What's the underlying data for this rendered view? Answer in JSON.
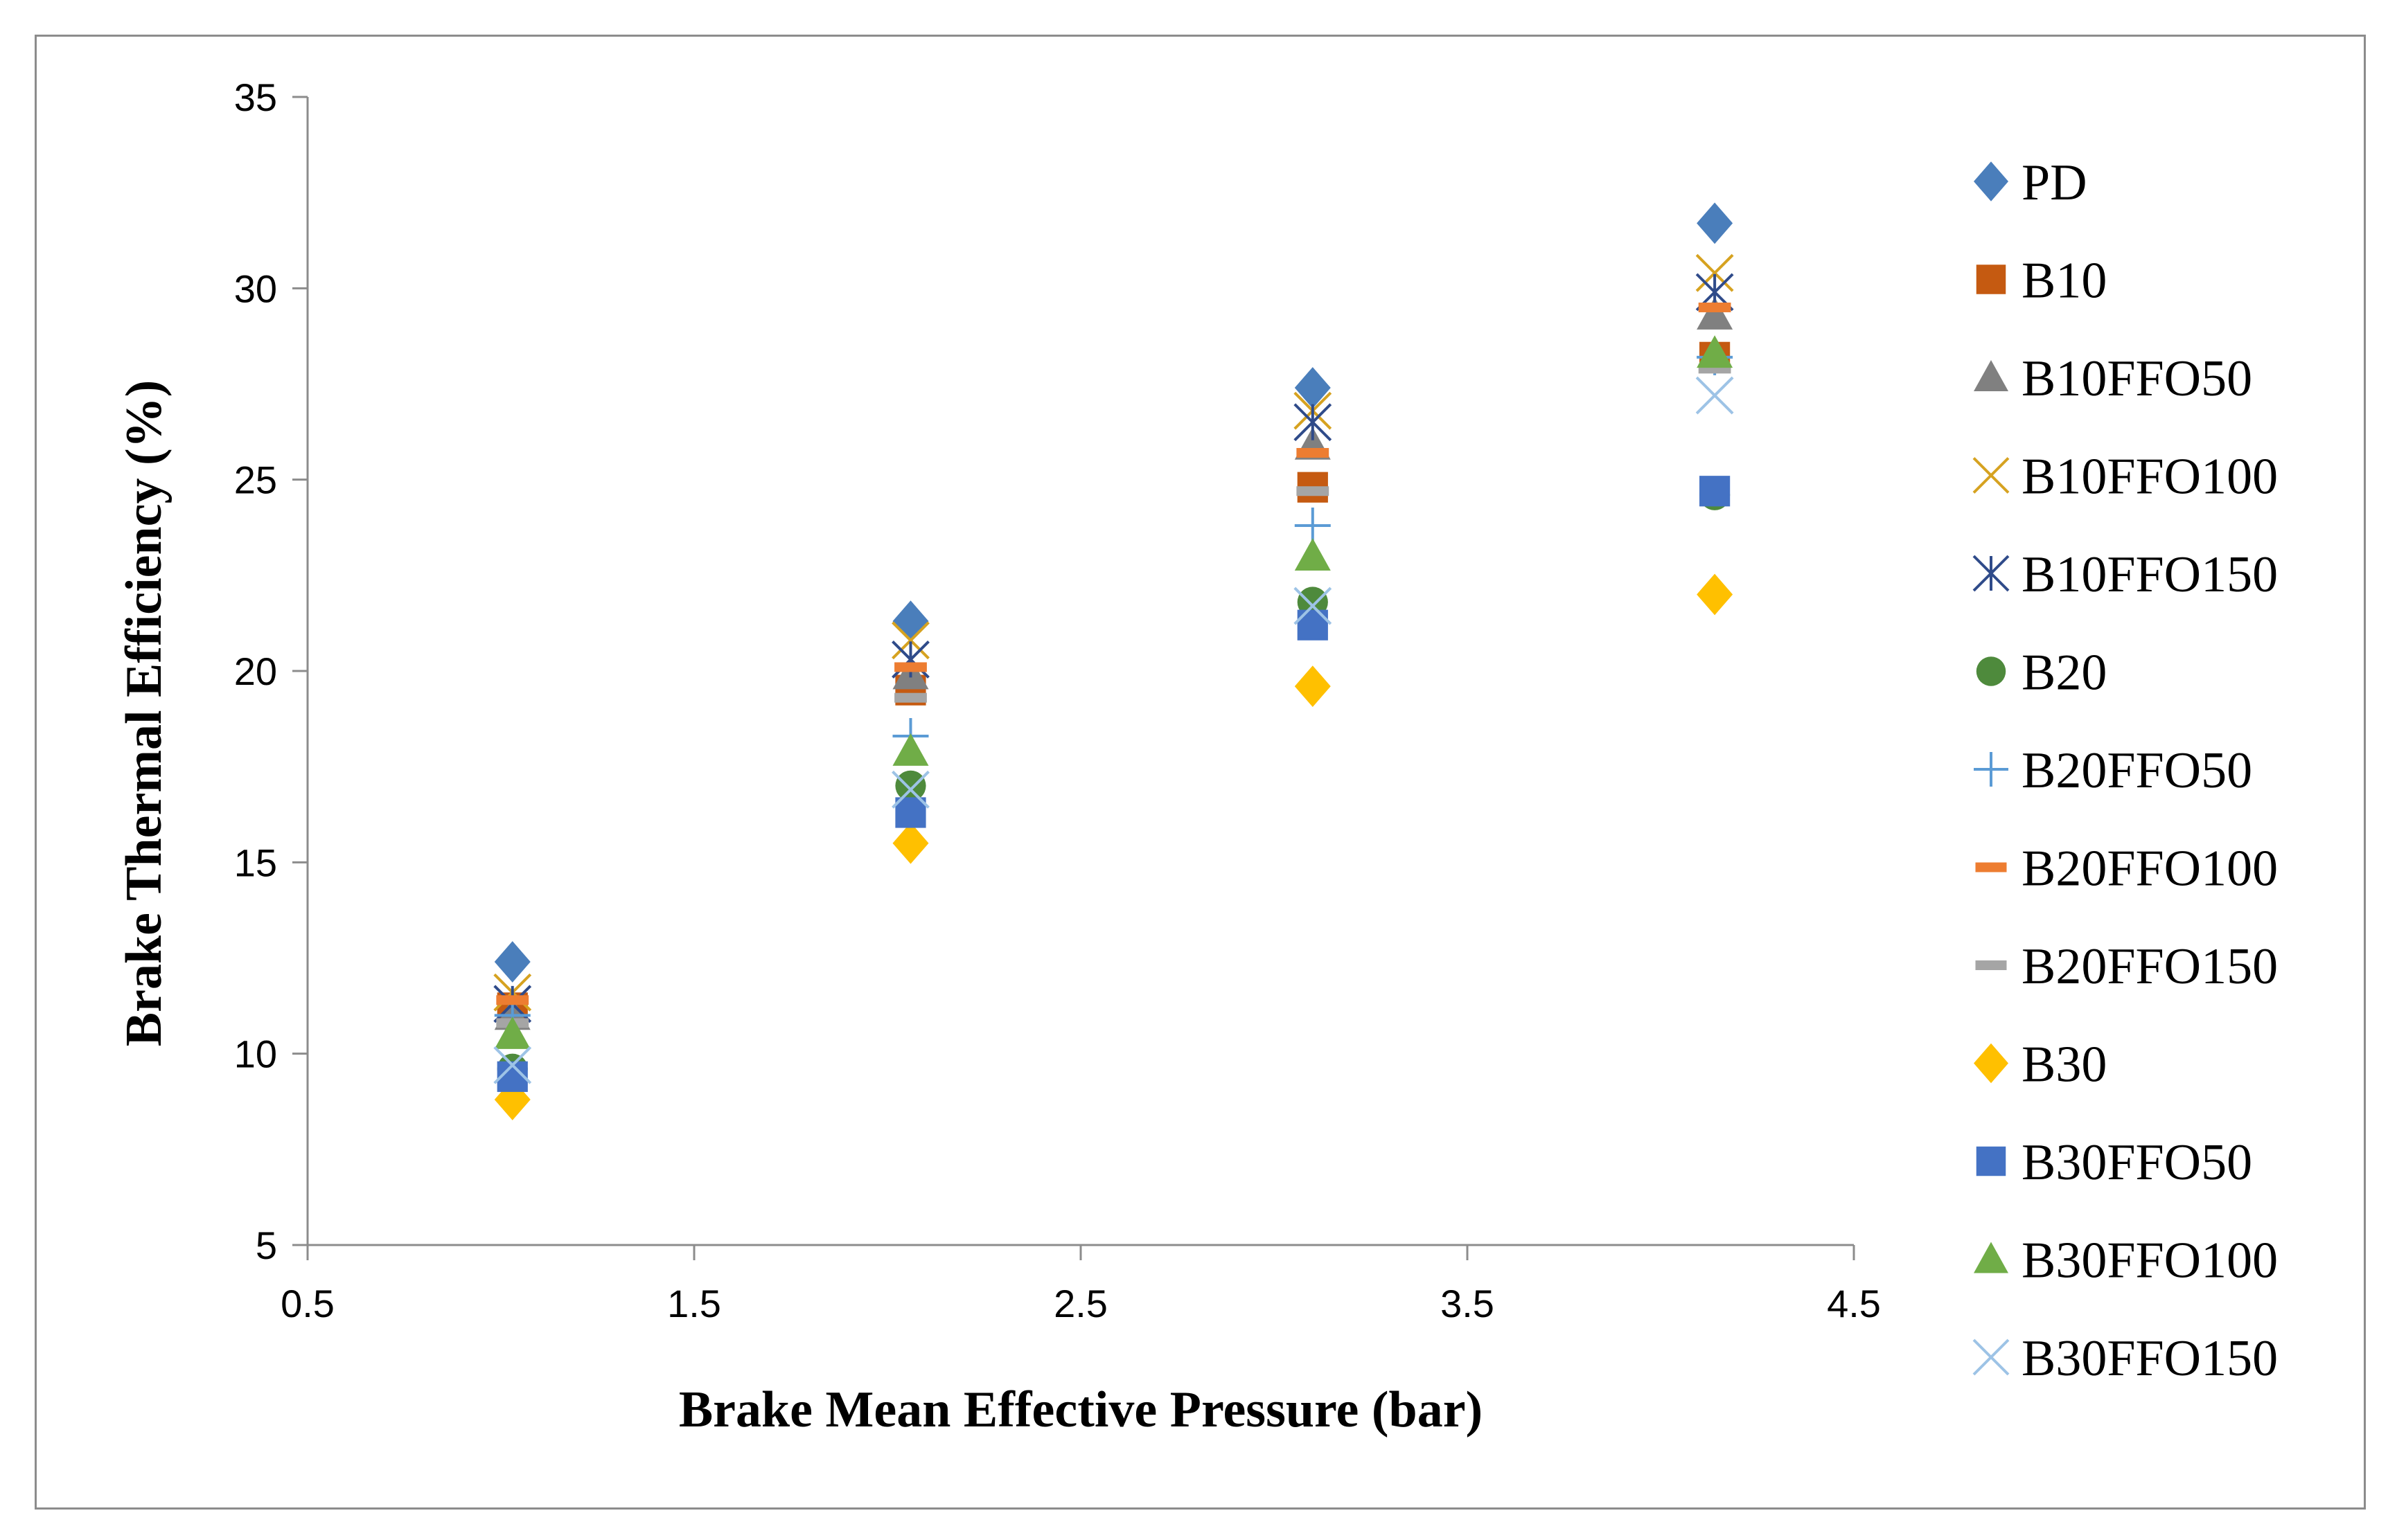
{
  "chart_data": {
    "type": "scatter",
    "title": "",
    "xlabel": "Brake Mean Effective Pressure (bar)",
    "ylabel": "Brake Thermal Efficiency (%)",
    "xlim": [
      0.5,
      4.5
    ],
    "ylim": [
      5,
      35
    ],
    "xticks": [
      "0.5",
      "1.5",
      "2.5",
      "3.5",
      "4.5"
    ],
    "yticks": [
      "5",
      "10",
      "15",
      "20",
      "25",
      "30",
      "35"
    ],
    "grid": false,
    "legend_position": "right",
    "x": [
      1.03,
      2.06,
      3.1,
      4.14
    ],
    "series": [
      {
        "name": "PD",
        "marker": "diamond",
        "color": "#4a7ebb",
        "values": [
          12.4,
          21.3,
          27.4,
          31.7
        ]
      },
      {
        "name": "B10",
        "marker": "square",
        "color": "#c55a11",
        "values": [
          11.2,
          19.5,
          24.8,
          28.2
        ]
      },
      {
        "name": "B10FFO50",
        "marker": "triangle",
        "color": "#808080",
        "values": [
          11.0,
          19.9,
          25.9,
          29.3
        ]
      },
      {
        "name": "B10FFO100",
        "marker": "x",
        "color": "#d6a220",
        "values": [
          11.6,
          20.8,
          26.8,
          30.4
        ]
      },
      {
        "name": "B10FFO150",
        "marker": "star",
        "color": "#2f4b8a",
        "values": [
          11.3,
          20.3,
          26.5,
          29.9
        ]
      },
      {
        "name": "B20",
        "marker": "circle",
        "color": "#4e8a3c",
        "values": [
          9.6,
          17.0,
          21.8,
          24.6
        ]
      },
      {
        "name": "B20FFO50",
        "marker": "plus",
        "color": "#5b9bd5",
        "values": [
          11.0,
          18.3,
          23.8,
          28.2
        ]
      },
      {
        "name": "B20FFO100",
        "marker": "dash",
        "color": "#ed7d31",
        "values": [
          11.4,
          20.1,
          25.7,
          29.5
        ]
      },
      {
        "name": "B20FFO150",
        "marker": "dash",
        "color": "#a5a5a5",
        "values": [
          10.8,
          19.3,
          24.7,
          27.9
        ]
      },
      {
        "name": "B30",
        "marker": "diamond",
        "color": "#ffc000",
        "values": [
          8.8,
          15.5,
          19.6,
          22.0
        ]
      },
      {
        "name": "B30FFO50",
        "marker": "square",
        "color": "#4472c4",
        "values": [
          9.4,
          16.3,
          21.2,
          24.7
        ]
      },
      {
        "name": "B30FFO100",
        "marker": "triangle",
        "color": "#70ad47",
        "values": [
          10.5,
          17.9,
          23.0,
          28.3
        ]
      },
      {
        "name": "B30FFO150",
        "marker": "x",
        "color": "#9dc3e6",
        "values": [
          9.7,
          16.9,
          21.7,
          27.2
        ]
      }
    ]
  }
}
